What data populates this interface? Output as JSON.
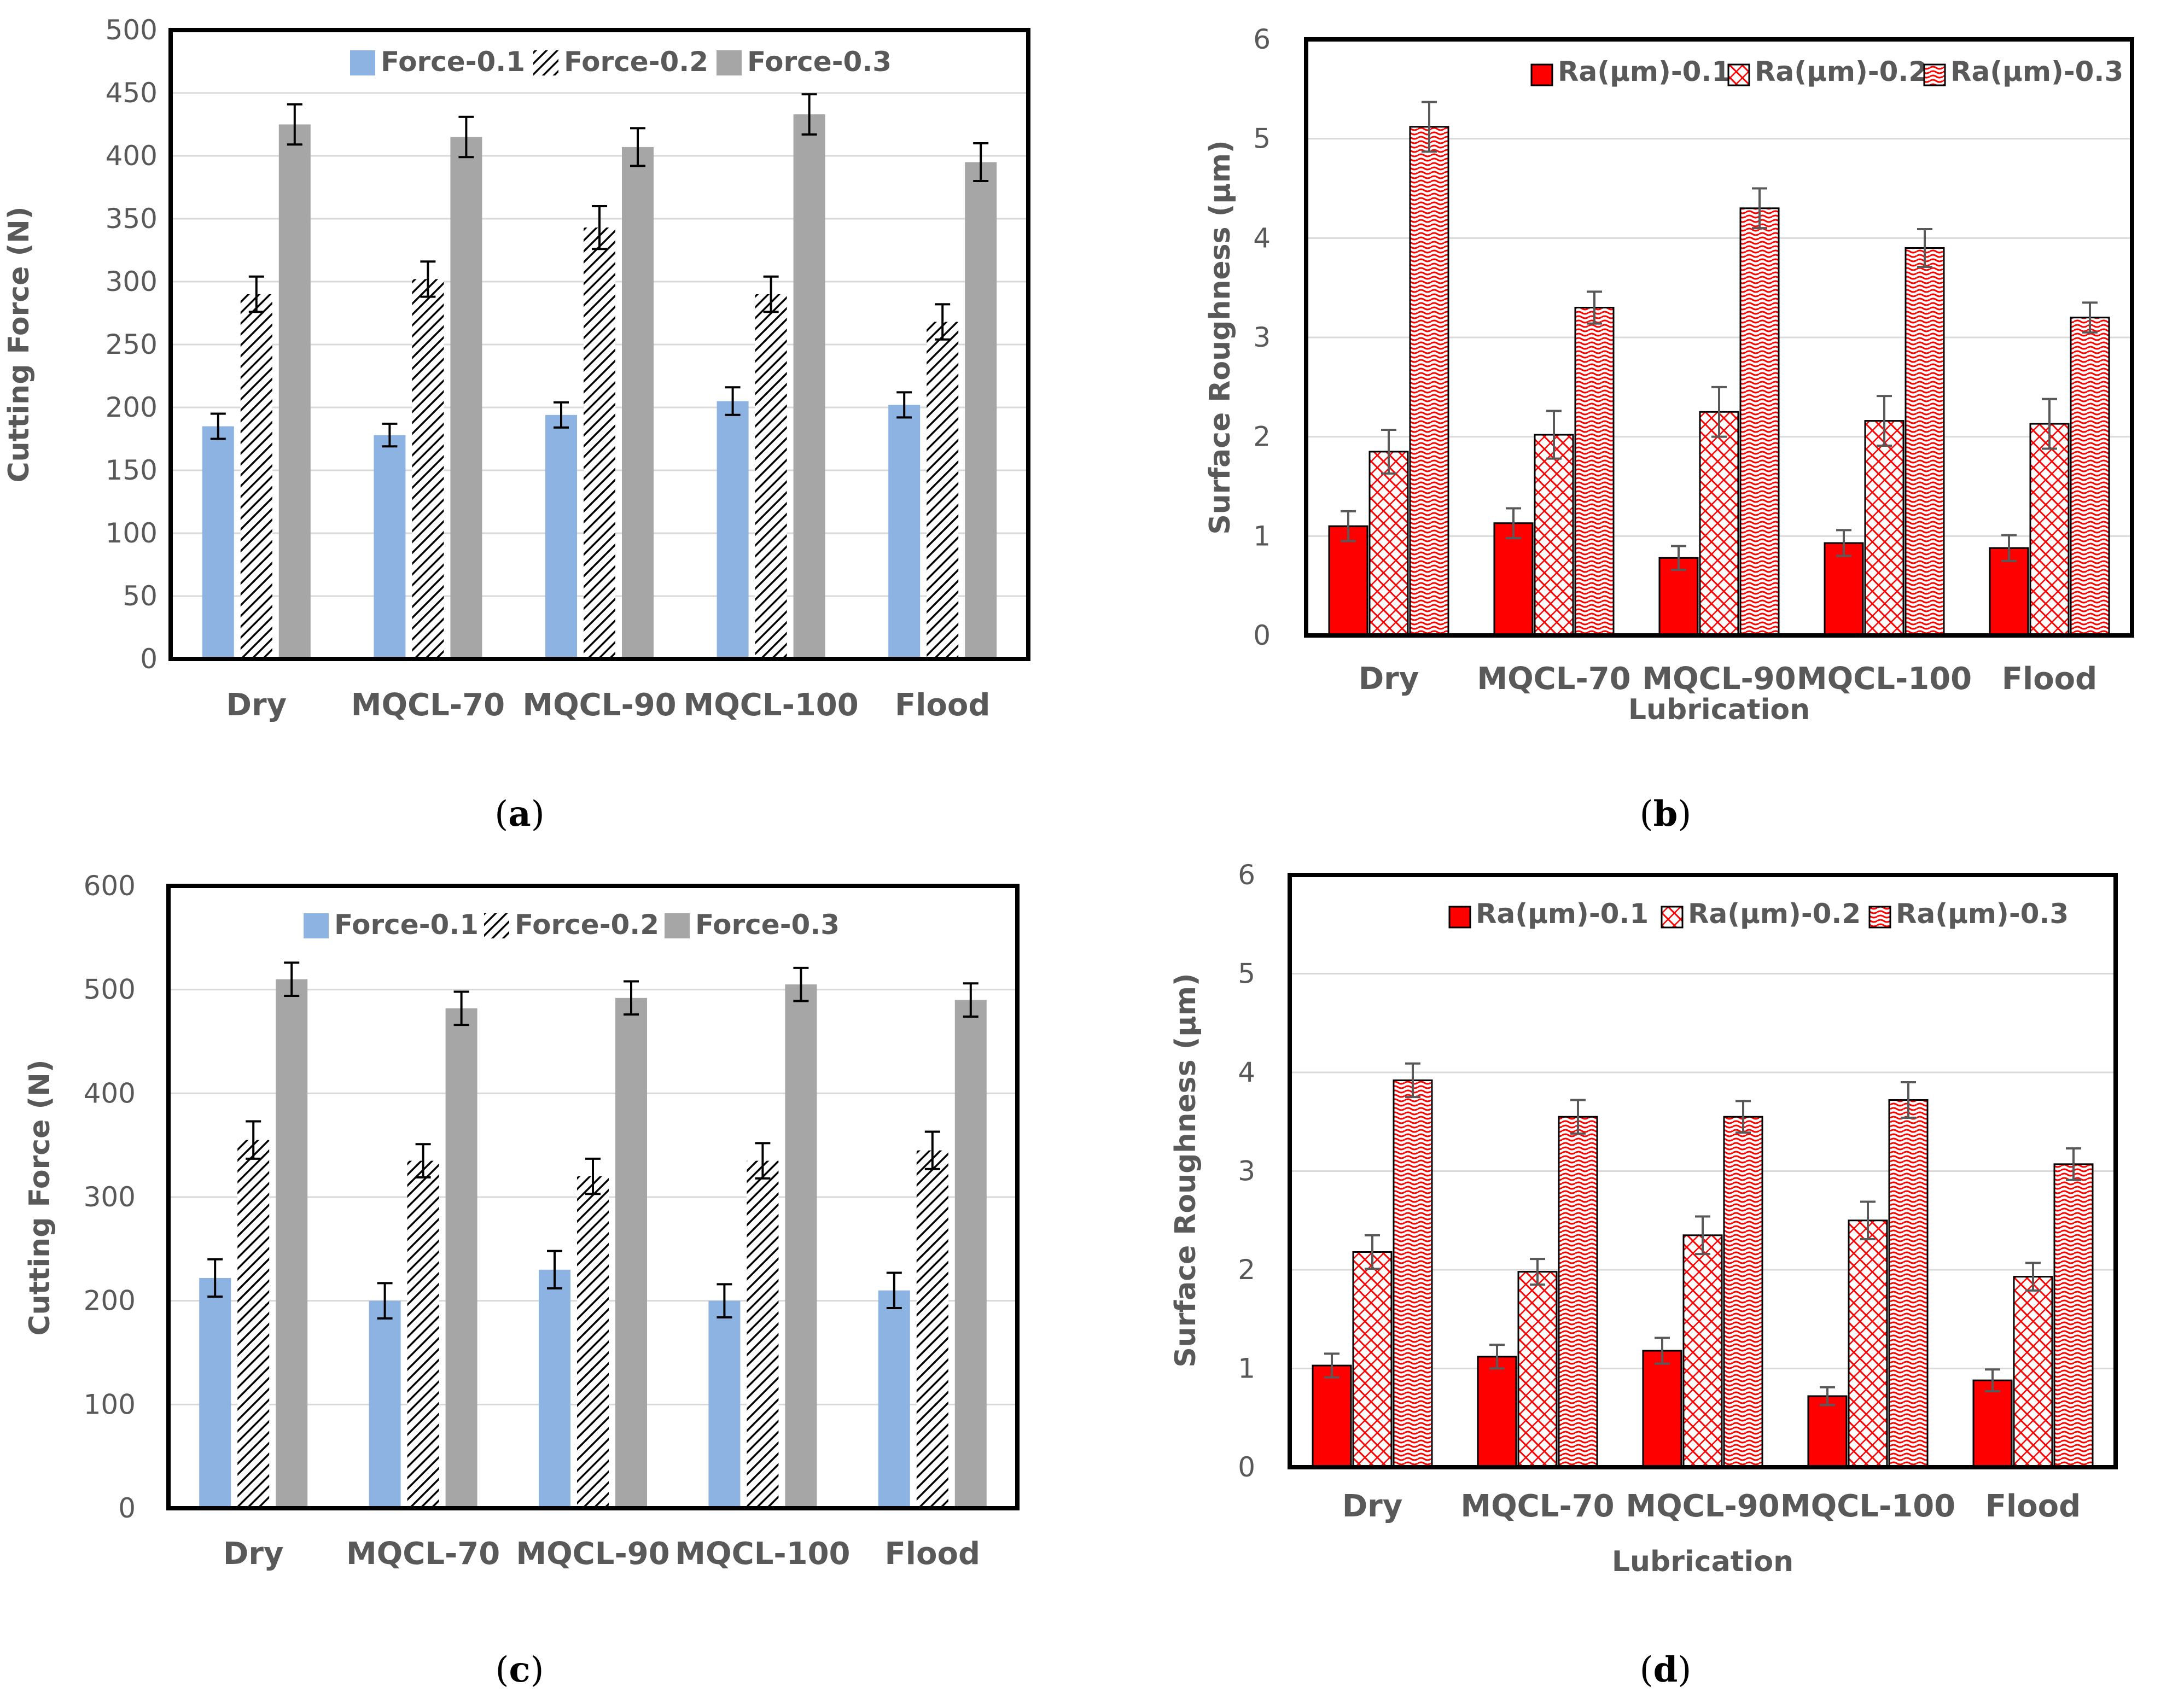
{
  "chart_data": [
    {
      "panel": "(a)",
      "panel_letter": "a",
      "type": "bar",
      "title": "",
      "ylabel": "Cutting Force (N)",
      "xlabel": "",
      "ylim": [
        0,
        500
      ],
      "yticks": [
        0,
        50,
        100,
        150,
        200,
        250,
        300,
        350,
        400,
        450,
        500
      ],
      "grid": true,
      "legend_position": "top",
      "categories": [
        "Dry",
        "MQCL-70",
        "MQCL-90",
        "MQCL-100",
        "Flood"
      ],
      "series": [
        {
          "name": "Force-0.1",
          "style": "solid",
          "color": "#8db3e2",
          "values": [
            185,
            178,
            194,
            205,
            202
          ],
          "errors": [
            10,
            9,
            10,
            11,
            10
          ]
        },
        {
          "name": "Force-0.2",
          "style": "hatch",
          "color": "#000000",
          "values": [
            290,
            302,
            343,
            290,
            268
          ],
          "errors": [
            14,
            14,
            17,
            14,
            14
          ]
        },
        {
          "name": "Force-0.3",
          "style": "solid",
          "color": "#a6a6a6",
          "values": [
            425,
            415,
            407,
            433,
            395
          ],
          "errors": [
            16,
            16,
            15,
            16,
            15
          ]
        }
      ]
    },
    {
      "panel": "(b)",
      "panel_letter": "b",
      "type": "bar",
      "title": "",
      "ylabel": "Surface Roughness (µm)",
      "xlabel": "Lubrication",
      "ylim": [
        0,
        6
      ],
      "yticks": [
        0,
        1,
        2,
        3,
        4,
        5,
        6
      ],
      "grid": true,
      "legend_position": "top",
      "categories": [
        "Dry",
        "MQCL-70",
        "MQCL-90",
        "MQCL-100",
        "Flood"
      ],
      "series": [
        {
          "name": "Ra(µm)-0.1",
          "style": "solid",
          "color": "#ff0000",
          "values": [
            1.1,
            1.13,
            0.78,
            0.93,
            0.88
          ],
          "errors": [
            0.15,
            0.15,
            0.12,
            0.13,
            0.13
          ]
        },
        {
          "name": "Ra(µm)-0.2",
          "style": "hatch",
          "color": "#ff0000",
          "values": [
            1.85,
            2.02,
            2.25,
            2.16,
            2.13
          ],
          "errors": [
            0.22,
            0.24,
            0.25,
            0.25,
            0.25
          ]
        },
        {
          "name": "Ra(µm)-0.3",
          "style": "wave",
          "color": "#ff0000",
          "values": [
            5.12,
            3.3,
            4.3,
            3.9,
            3.2
          ],
          "errors": [
            0.25,
            0.16,
            0.2,
            0.19,
            0.15
          ]
        }
      ]
    },
    {
      "panel": "(c)",
      "panel_letter": "c",
      "type": "bar",
      "title": "",
      "ylabel": "Cutting Force (N)",
      "xlabel": "",
      "ylim": [
        0,
        600
      ],
      "yticks": [
        0,
        100,
        200,
        300,
        400,
        500,
        600
      ],
      "grid": true,
      "legend_position": "top",
      "categories": [
        "Dry",
        "MQCL-70",
        "MQCL-90",
        "MQCL-100",
        "Flood"
      ],
      "series": [
        {
          "name": "Force-0.1",
          "style": "solid",
          "color": "#8db3e2",
          "values": [
            222,
            200,
            230,
            200,
            210
          ],
          "errors": [
            18,
            17,
            18,
            16,
            17
          ]
        },
        {
          "name": "Force-0.2",
          "style": "hatch",
          "color": "#000000",
          "values": [
            355,
            335,
            320,
            335,
            345
          ],
          "errors": [
            18,
            16,
            17,
            17,
            18
          ]
        },
        {
          "name": "Force-0.3",
          "style": "solid",
          "color": "#a6a6a6",
          "values": [
            510,
            482,
            492,
            505,
            490
          ],
          "errors": [
            16,
            16,
            16,
            16,
            16
          ]
        }
      ]
    },
    {
      "panel": "(d)",
      "panel_letter": "d",
      "type": "bar",
      "title": "",
      "ylabel": "Surface Roughness (µm)",
      "xlabel": "Lubrication",
      "ylim": [
        0,
        6
      ],
      "yticks": [
        0,
        1,
        2,
        3,
        4,
        5,
        6
      ],
      "grid": true,
      "legend_position": "top",
      "categories": [
        "Dry",
        "MQCL-70",
        "MQCL-90",
        "MQCL-100",
        "Flood"
      ],
      "series": [
        {
          "name": "Ra(µm)-0.1",
          "style": "solid",
          "color": "#ff0000",
          "values": [
            1.03,
            1.12,
            1.18,
            0.72,
            0.88
          ],
          "errors": [
            0.12,
            0.12,
            0.13,
            0.09,
            0.11
          ]
        },
        {
          "name": "Ra(µm)-0.2",
          "style": "hatch",
          "color": "#ff0000",
          "values": [
            2.18,
            1.98,
            2.35,
            2.5,
            1.93
          ],
          "errors": [
            0.17,
            0.13,
            0.19,
            0.19,
            0.14
          ]
        },
        {
          "name": "Ra(µm)-0.3",
          "style": "wave",
          "color": "#ff0000",
          "values": [
            3.92,
            3.55,
            3.55,
            3.72,
            3.07
          ],
          "errors": [
            0.17,
            0.17,
            0.16,
            0.18,
            0.16
          ]
        }
      ]
    }
  ]
}
